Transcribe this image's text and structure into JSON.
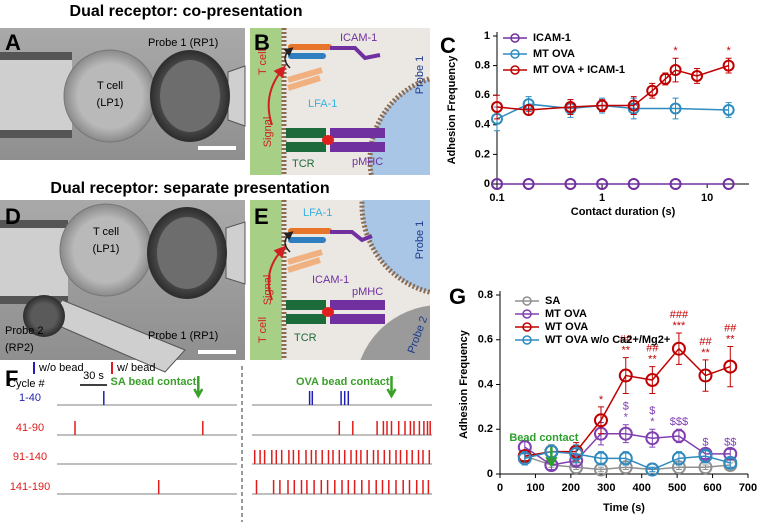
{
  "figure_titles": [
    "Dual receptor: co-presentation",
    "Dual receptor: separate presentation"
  ],
  "panel_a": {
    "label": "A",
    "probe": "Probe 1 (RP1)",
    "cell": [
      "T cell",
      "(LP1)"
    ]
  },
  "panel_b": {
    "label": "B",
    "t_cell": "T cell",
    "icam": "ICAM-1",
    "lfa": "LFA-1",
    "signal": "Signal",
    "tcr": "TCR",
    "pmhc": "pMHC",
    "probe": "Probe 1"
  },
  "panel_d": {
    "label": "D",
    "cell": [
      "T cell",
      "(LP1)"
    ],
    "probe2": [
      "Probe 2",
      "(RP2)"
    ],
    "probe1": "Probe 1 (RP1)"
  },
  "panel_e": {
    "label": "E",
    "t_cell": "T cell",
    "lfa": "LFA-1",
    "icam": "ICAM-1",
    "signal": "Signal",
    "tcr": "TCR",
    "pmhc": "pMHC",
    "probe1": "Probe 1",
    "probe2": "Probe 2"
  },
  "panel_f": {
    "label": "F",
    "legend": [
      {
        "name": "w/o bead",
        "color": "#1f1fb0"
      },
      {
        "name": "w/ bead",
        "color": "#e01b1b"
      }
    ],
    "header": "Cycle #",
    "scale": {
      "value": 30,
      "label": "30 s"
    },
    "row_labels": [
      "1-40",
      "41-90",
      "91-140",
      "141-190"
    ],
    "row_bead": [
      false,
      true,
      true,
      true
    ],
    "contact_color": "#3aa02a",
    "groups": [
      {
        "title": "SA bead contact",
        "contact": 157,
        "events": [
          [
            52
          ],
          [
            20,
            162
          ],
          [],
          [
            113
          ]
        ]
      },
      {
        "title": "OVA bead contact",
        "contact": 155,
        "events": [
          [
            64,
            67,
            99,
            103,
            107
          ],
          [
            97,
            112,
            139,
            146,
            150,
            155,
            163,
            170,
            176,
            180,
            186,
            191,
            195,
            198
          ],
          [
            3,
            9,
            14,
            22,
            27,
            33,
            41,
            46,
            52,
            60,
            66,
            71,
            78,
            85,
            90,
            97,
            103,
            110,
            116,
            121,
            128,
            135,
            140,
            147,
            153,
            160,
            165,
            172,
            178,
            185,
            190,
            197
          ],
          [
            5,
            24,
            31,
            40,
            47,
            55,
            61,
            69,
            77,
            84,
            92,
            100,
            107,
            114,
            122,
            130,
            138,
            145,
            152,
            160,
            168,
            175,
            183,
            190,
            196
          ]
        ]
      }
    ]
  },
  "chart_data": [
    {
      "type": "line",
      "label": "C",
      "xlabel": "Contact duration (s)",
      "ylabel": "Adhesion Frequency",
      "xscale": "log",
      "xlim": [
        0.1,
        25
      ],
      "xticks": [
        0.1,
        1,
        10
      ],
      "ylim": [
        0,
        1
      ],
      "yticks": [
        0,
        0.2,
        0.4,
        0.6,
        0.8,
        1
      ],
      "series": [
        {
          "name": "ICAM-1",
          "color": "#7030a0",
          "x": [
            0.1,
            0.2,
            0.5,
            1,
            2,
            5,
            16
          ],
          "values": [
            0,
            0,
            0,
            0,
            0,
            0,
            0
          ],
          "errors": [
            0,
            0,
            0,
            0,
            0,
            0,
            0
          ]
        },
        {
          "name": "MT OVA",
          "color": "#2e8bc0",
          "x": [
            0.1,
            0.2,
            0.5,
            1,
            2,
            5,
            16
          ],
          "values": [
            0.44,
            0.54,
            0.51,
            0.53,
            0.51,
            0.51,
            0.5
          ],
          "errors": [
            0.08,
            0.05,
            0.06,
            0.05,
            0.07,
            0.07,
            0.05
          ]
        },
        {
          "name": "MT OVA + ICAM-1",
          "color": "#c00000",
          "x": [
            0.1,
            0.2,
            0.5,
            1,
            2,
            3,
            4,
            5,
            8,
            16
          ],
          "values": [
            0.52,
            0.5,
            0.52,
            0.53,
            0.53,
            0.63,
            0.71,
            0.77,
            0.73,
            0.8
          ],
          "errors": [
            0.08,
            0.03,
            0.05,
            0.04,
            0.06,
            0.05,
            0.04,
            0.08,
            0.05,
            0.05
          ],
          "annotations": [
            {
              "x": 5,
              "text": [
                "*"
              ]
            },
            {
              "x": 16,
              "text": [
                "*"
              ]
            }
          ]
        }
      ]
    },
    {
      "type": "line",
      "label": "G",
      "xlabel": "Time (s)",
      "ylabel": "Adhesion Frequency",
      "xlim": [
        0,
        700
      ],
      "xticks": [
        0,
        100,
        200,
        300,
        400,
        500,
        600,
        700
      ],
      "ylim": [
        0,
        0.8
      ],
      "yticks": [
        0,
        0.2,
        0.4,
        0.6,
        0.8
      ],
      "marker": {
        "text": "Bead contact",
        "x": 145,
        "color": "#2ca02c"
      },
      "series": [
        {
          "name": "SA",
          "color": "#909090",
          "x": [
            70,
            145,
            215,
            285,
            355,
            430,
            505,
            580,
            650
          ],
          "values": [
            0.08,
            0.04,
            0.03,
            0.02,
            0.03,
            0.02,
            0.03,
            0.03,
            0.04
          ],
          "errors": [
            0.02,
            0.01,
            0.01,
            0.01,
            0.01,
            0.01,
            0.01,
            0.01,
            0.01
          ]
        },
        {
          "name": "MT OVA",
          "color": "#8040b0",
          "x": [
            70,
            145,
            215,
            285,
            355,
            430,
            505,
            580,
            650
          ],
          "values": [
            0.12,
            0.04,
            0.06,
            0.18,
            0.18,
            0.16,
            0.17,
            0.09,
            0.09
          ],
          "errors": [
            0.03,
            0.02,
            0.03,
            0.05,
            0.04,
            0.04,
            0.03,
            0.02,
            0.02
          ],
          "annotations": [
            {
              "x": 355,
              "text": [
                "$",
                "*"
              ]
            },
            {
              "x": 430,
              "text": [
                "$",
                "*"
              ]
            },
            {
              "x": 505,
              "text": [
                "$$$"
              ]
            },
            {
              "x": 580,
              "text": [
                "$"
              ]
            },
            {
              "x": 650,
              "text": [
                "$$"
              ]
            }
          ]
        },
        {
          "name": "WT OVA",
          "color": "#c00000",
          "x": [
            70,
            145,
            215,
            285,
            355,
            430,
            505,
            580,
            650
          ],
          "values": [
            0.08,
            0.1,
            0.1,
            0.24,
            0.44,
            0.42,
            0.56,
            0.44,
            0.48
          ],
          "errors": [
            0.02,
            0.03,
            0.04,
            0.06,
            0.08,
            0.06,
            0.07,
            0.07,
            0.09
          ],
          "annotations": [
            {
              "x": 285,
              "text": [
                "*"
              ]
            },
            {
              "x": 355,
              "text": [
                "##",
                "**"
              ]
            },
            {
              "x": 430,
              "text": [
                "##",
                "**"
              ]
            },
            {
              "x": 505,
              "text": [
                "###",
                "***"
              ]
            },
            {
              "x": 580,
              "text": [
                "##",
                "**"
              ]
            },
            {
              "x": 650,
              "text": [
                "##",
                "**"
              ]
            }
          ]
        },
        {
          "name": "WT OVA w/o Ca2+/Mg2+",
          "color": "#2e8bc0",
          "x": [
            70,
            145,
            215,
            285,
            355,
            430,
            505,
            580,
            650
          ],
          "values": [
            0.07,
            0.1,
            0.09,
            0.07,
            0.07,
            0.02,
            0.07,
            0.08,
            0.05
          ],
          "errors": [
            0.03,
            0.03,
            0.04,
            0.03,
            0.03,
            0.01,
            0.03,
            0.03,
            0.02
          ]
        }
      ]
    }
  ]
}
